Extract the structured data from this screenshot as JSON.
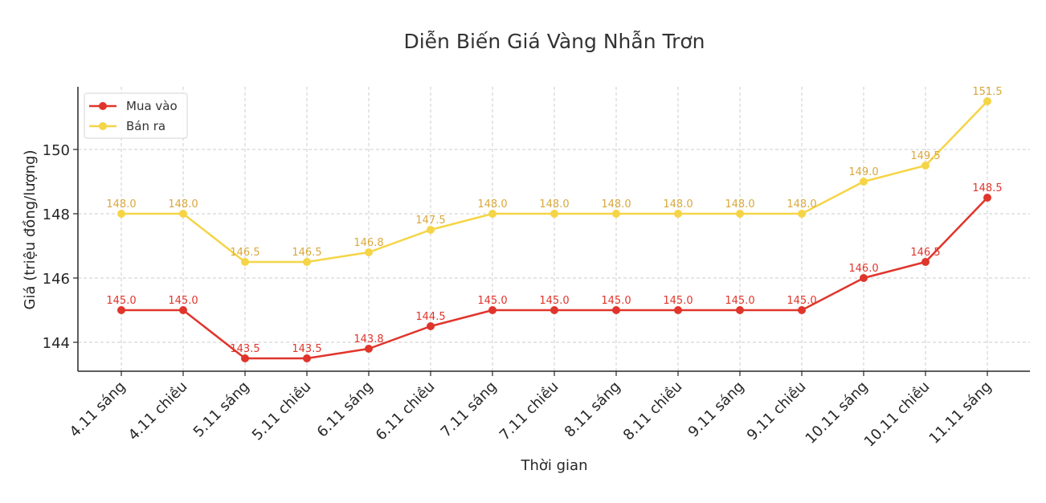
{
  "chart_data": {
    "type": "line",
    "title": "Diễn Biến Giá Vàng Nhẫn Trơn",
    "xlabel": "Thời gian",
    "ylabel": "Giá (triệu đồng/lượng)",
    "categories": [
      "4.11 sáng",
      "4.11 chiều",
      "5.11 sáng",
      "5.11 chiều",
      "6.11 sáng",
      "6.11 chiều",
      "7.11 sáng",
      "7.11 chiều",
      "8.11 sáng",
      "8.11 chiều",
      "9.11 sáng",
      "9.11 chiều",
      "10.11 sáng",
      "10.11 chiều",
      "11.11 sáng"
    ],
    "series": [
      {
        "name": "Mua vào",
        "color": "#e0352b",
        "label_color": "#e0352b",
        "values": [
          145.0,
          145.0,
          143.5,
          143.5,
          143.8,
          144.5,
          145.0,
          145.0,
          145.0,
          145.0,
          145.0,
          145.0,
          146.0,
          146.5,
          148.5
        ]
      },
      {
        "name": "Bán ra",
        "color": "#f5d547",
        "label_color": "#d9a83c",
        "values": [
          148.0,
          148.0,
          146.5,
          146.5,
          146.8,
          147.5,
          148.0,
          148.0,
          148.0,
          148.0,
          148.0,
          148.0,
          149.0,
          149.5,
          151.5
        ]
      }
    ],
    "yticks": [
      144,
      146,
      148,
      150
    ],
    "ylim": [
      143.1,
      151.95
    ],
    "grid": true,
    "legend_position": "upper left"
  }
}
